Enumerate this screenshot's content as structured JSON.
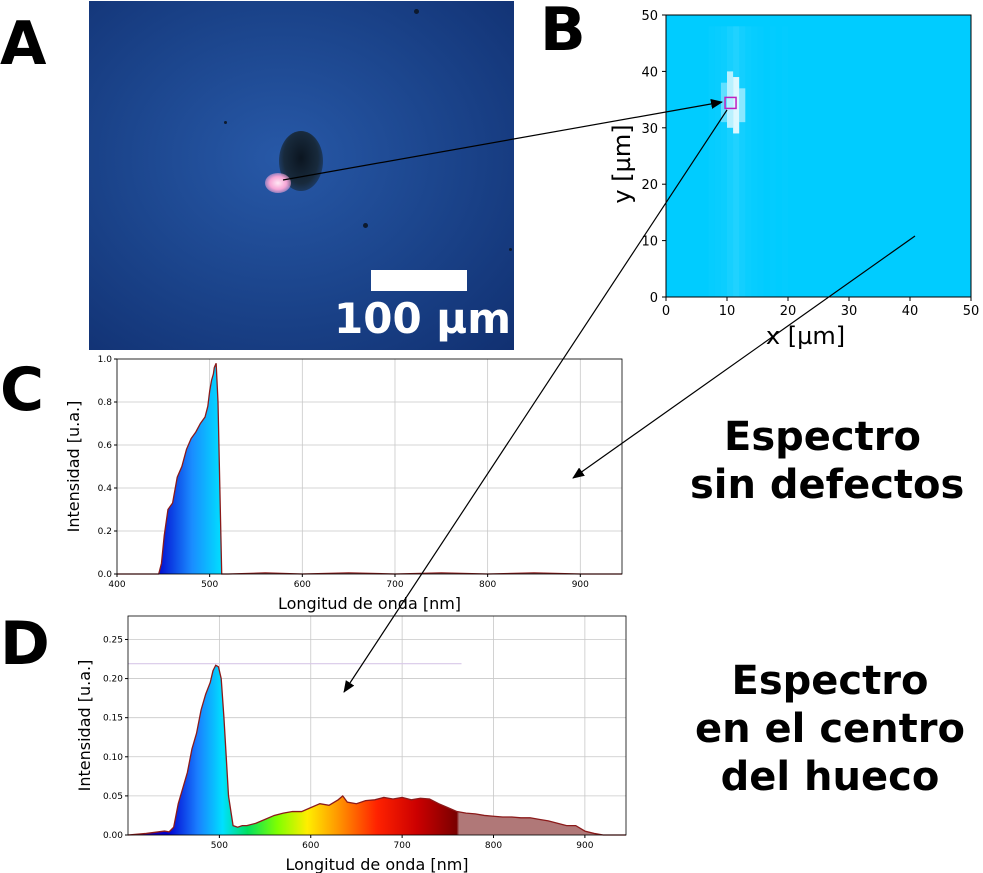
{
  "panel_labels": {
    "a": "A",
    "b": "B",
    "c": "C",
    "d": "D"
  },
  "micrograph": {
    "scale_label": "100 µm"
  },
  "side_titles": {
    "c": [
      "Espectro",
      "sin defectos"
    ],
    "d": [
      "Espectro",
      "en el centro",
      "del hueco"
    ]
  },
  "colors": {
    "spectrum_line": "#8b1a1a",
    "map_background": "#00ccff",
    "marker": "#c020c0"
  },
  "chart_data": [
    {
      "id": "B",
      "type": "heatmap",
      "xlabel": "x [µm]",
      "ylabel": "y [µm]",
      "xlim": [
        0,
        50
      ],
      "ylim": [
        0,
        50
      ],
      "xticks": [
        0,
        10,
        20,
        30,
        40,
        50
      ],
      "yticks": [
        0,
        10,
        20,
        30,
        40,
        50
      ],
      "marker": {
        "x": 10.5,
        "y": 34.5
      }
    },
    {
      "id": "C",
      "type": "area",
      "xlabel": "Longitud de onda [nm]",
      "ylabel": "Intensidad [u.a.]",
      "xlim": [
        400,
        945
      ],
      "ylim": [
        0,
        1.0
      ],
      "xticks": [
        400,
        500,
        600,
        700,
        800,
        900
      ],
      "yticks": [
        0.0,
        0.2,
        0.4,
        0.6,
        0.8,
        1.0
      ],
      "ytick_labels": [
        "0.0",
        "0.2",
        "0.4",
        "0.6",
        "0.8",
        "1.0"
      ],
      "grid": true,
      "x": [
        400,
        445,
        448,
        451,
        455,
        460,
        465,
        470,
        475,
        480,
        485,
        490,
        495,
        498,
        500,
        502,
        504,
        505,
        507,
        509,
        511,
        513,
        520,
        560,
        600,
        650,
        700,
        750,
        800,
        850,
        900,
        945
      ],
      "y": [
        0,
        0,
        0.05,
        0.18,
        0.3,
        0.33,
        0.45,
        0.5,
        0.58,
        0.63,
        0.66,
        0.7,
        0.73,
        0.78,
        0.85,
        0.9,
        0.93,
        0.96,
        0.98,
        0.8,
        0.4,
        0.0,
        0,
        0.005,
        0,
        0.005,
        0,
        0.005,
        0,
        0.005,
        0,
        0
      ]
    },
    {
      "id": "D",
      "type": "area",
      "xlabel": "Longitud de onda [nm]",
      "ylabel": "Intensidad [u.a.]",
      "xlim": [
        400,
        945
      ],
      "ylim": [
        0,
        0.28
      ],
      "xticks": [
        500,
        600,
        700,
        800,
        900
      ],
      "yticks": [
        0.0,
        0.05,
        0.1,
        0.15,
        0.2,
        0.25
      ],
      "ytick_labels": [
        "0.00",
        "0.05",
        "0.10",
        "0.15",
        "0.20",
        "0.25"
      ],
      "grid": true,
      "x": [
        400,
        420,
        440,
        445,
        450,
        455,
        460,
        465,
        470,
        475,
        480,
        485,
        490,
        493,
        496,
        499,
        502,
        505,
        510,
        515,
        520,
        525,
        530,
        540,
        550,
        560,
        570,
        580,
        590,
        600,
        610,
        620,
        630,
        635,
        640,
        650,
        660,
        670,
        680,
        690,
        700,
        710,
        720,
        730,
        740,
        750,
        760,
        770,
        780,
        790,
        800,
        810,
        820,
        830,
        840,
        850,
        860,
        870,
        880,
        890,
        900,
        910,
        920,
        945
      ],
      "y": [
        0,
        0.002,
        0.005,
        0.004,
        0.01,
        0.04,
        0.06,
        0.08,
        0.11,
        0.13,
        0.16,
        0.18,
        0.195,
        0.21,
        0.217,
        0.215,
        0.2,
        0.15,
        0.05,
        0.012,
        0.01,
        0.012,
        0.012,
        0.015,
        0.02,
        0.025,
        0.028,
        0.03,
        0.03,
        0.035,
        0.04,
        0.038,
        0.045,
        0.05,
        0.042,
        0.04,
        0.044,
        0.045,
        0.048,
        0.046,
        0.048,
        0.045,
        0.047,
        0.046,
        0.04,
        0.035,
        0.03,
        0.028,
        0.027,
        0.025,
        0.024,
        0.023,
        0.023,
        0.022,
        0.022,
        0.02,
        0.018,
        0.015,
        0.012,
        0.012,
        0.005,
        0.002,
        0,
        0
      ]
    }
  ]
}
